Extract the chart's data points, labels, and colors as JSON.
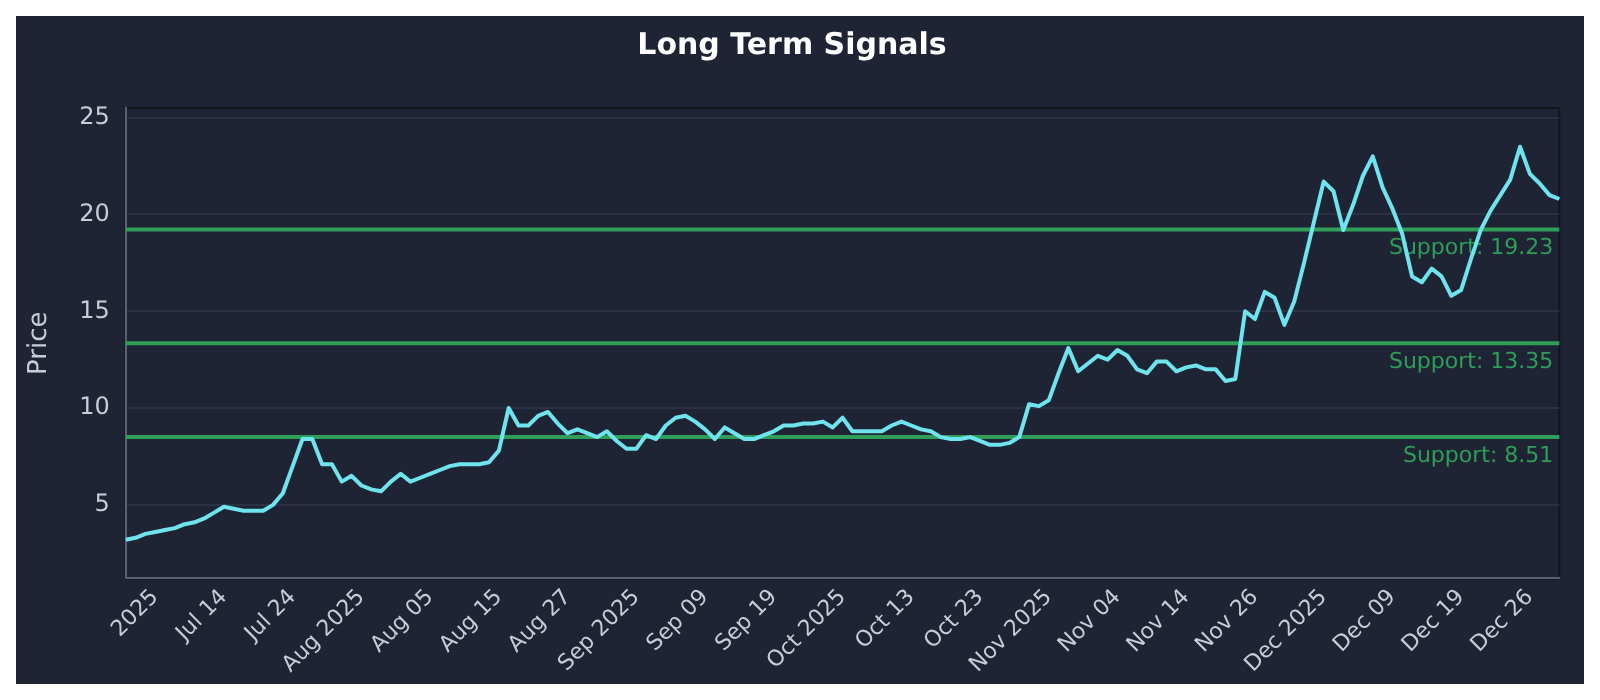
{
  "chart_data": {
    "type": "line",
    "title": "Long Term Signals",
    "ylabel": "Price",
    "categories": [
      null,
      null,
      null,
      "2025",
      null,
      null,
      null,
      null,
      null,
      null,
      "Jul 14",
      null,
      null,
      null,
      null,
      null,
      null,
      "Jul 24",
      null,
      null,
      null,
      null,
      null,
      null,
      "Aug 2025",
      null,
      null,
      null,
      null,
      null,
      null,
      "Aug 05",
      null,
      null,
      null,
      null,
      null,
      null,
      "Aug 15",
      null,
      null,
      null,
      null,
      null,
      null,
      "Aug 27",
      null,
      null,
      null,
      null,
      null,
      null,
      "Sep 2025",
      null,
      null,
      null,
      null,
      null,
      null,
      "Sep 09",
      null,
      null,
      null,
      null,
      null,
      null,
      "Sep 19",
      null,
      null,
      null,
      null,
      null,
      null,
      "Oct 2025",
      null,
      null,
      null,
      null,
      null,
      null,
      "Oct 13",
      null,
      null,
      null,
      null,
      null,
      null,
      "Oct 23",
      null,
      null,
      null,
      null,
      null,
      null,
      "Nov 2025",
      null,
      null,
      null,
      null,
      null,
      null,
      "Nov 04",
      null,
      null,
      null,
      null,
      null,
      null,
      "Nov 14",
      null,
      null,
      null,
      null,
      null,
      null,
      "Nov 26",
      null,
      null,
      null,
      null,
      null,
      null,
      "Dec 2025",
      null,
      null,
      null,
      null,
      null,
      null,
      "Dec 09",
      null,
      null,
      null,
      null,
      null,
      null,
      "Dec 19",
      null,
      null,
      null,
      null,
      null,
      null,
      "Dec 26",
      null,
      null,
      null
    ],
    "series": [
      {
        "color": "#6fe3ee",
        "values": [
          3.2,
          3.3,
          3.5,
          3.6,
          3.7,
          3.8,
          4.0,
          4.1,
          4.3,
          4.6,
          4.9,
          4.8,
          4.7,
          4.7,
          4.7,
          5.0,
          5.6,
          7.0,
          8.4,
          8.4,
          7.1,
          7.1,
          6.2,
          6.5,
          6.0,
          5.8,
          5.7,
          6.2,
          6.6,
          6.2,
          6.4,
          6.6,
          6.8,
          7.0,
          7.1,
          7.1,
          7.1,
          7.2,
          7.8,
          10.0,
          9.1,
          9.1,
          9.6,
          9.8,
          9.2,
          8.7,
          8.9,
          8.7,
          8.5,
          8.8,
          8.3,
          7.9,
          7.9,
          8.6,
          8.4,
          9.1,
          9.5,
          9.6,
          9.3,
          8.9,
          8.4,
          9.0,
          8.7,
          8.4,
          8.4,
          8.6,
          8.8,
          9.1,
          9.1,
          9.2,
          9.2,
          9.3,
          9.0,
          9.5,
          8.8,
          8.8,
          8.8,
          8.8,
          9.1,
          9.3,
          9.1,
          8.9,
          8.8,
          8.5,
          8.4,
          8.4,
          8.5,
          8.3,
          8.1,
          8.1,
          8.2,
          8.5,
          10.2,
          10.1,
          10.4,
          11.8,
          13.1,
          11.9,
          12.3,
          12.7,
          12.5,
          13.0,
          12.7,
          12.0,
          11.8,
          12.4,
          12.4,
          11.9,
          12.1,
          12.2,
          12.0,
          12.0,
          11.4,
          11.5,
          15.0,
          14.6,
          16.0,
          15.7,
          14.3,
          15.5,
          17.5,
          19.6,
          21.7,
          21.2,
          19.2,
          20.5,
          22.0,
          23.0,
          21.4,
          20.3,
          19.0,
          16.8,
          16.5,
          17.2,
          16.8,
          15.8,
          16.1,
          17.7,
          19.2,
          20.2,
          21.0,
          21.8,
          23.5,
          22.1,
          21.6,
          21.0,
          20.8
        ]
      }
    ],
    "ylim": [
      1.2,
      25.5
    ],
    "yticks": [
      5,
      10,
      15,
      20,
      25
    ],
    "grid": "y",
    "legend": false,
    "marker": "none",
    "line_style": "solid",
    "ref_lines": [
      {
        "axis": "y",
        "value": 19.23,
        "label": "Support: 19.23",
        "color": "#2e9e58"
      },
      {
        "axis": "y",
        "value": 13.35,
        "label": "Support: 13.35",
        "color": "#2e9e58"
      },
      {
        "axis": "y",
        "value": 8.51,
        "label": "Support: 8.51",
        "color": "#2e9e58"
      }
    ]
  }
}
